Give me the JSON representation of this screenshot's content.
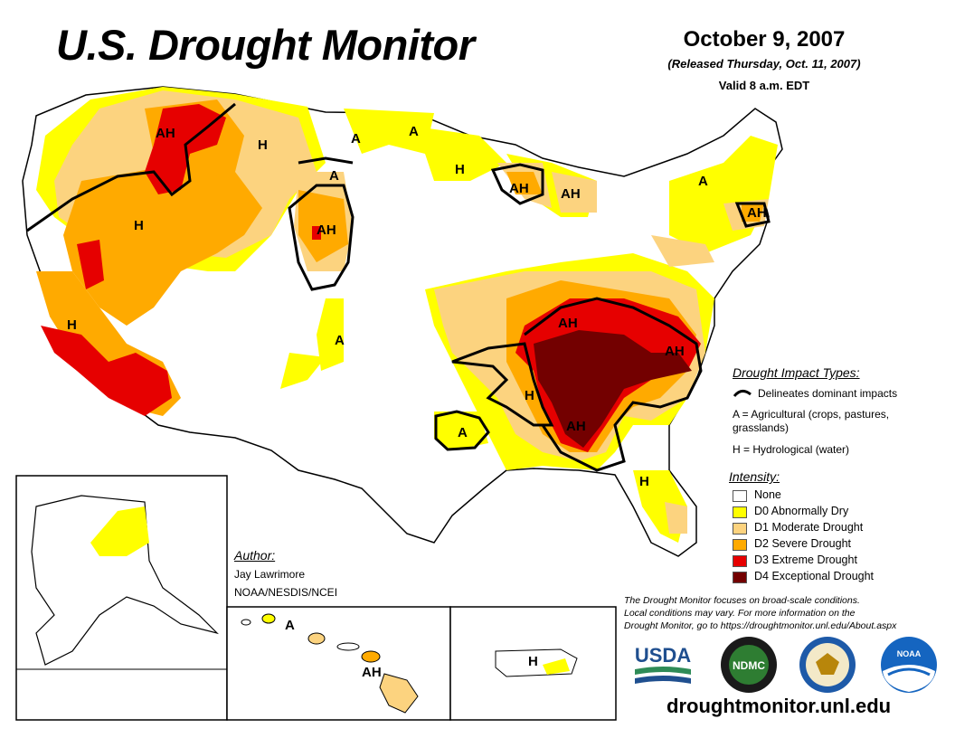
{
  "header": {
    "title": "U.S. Drought Monitor",
    "date": "October 9, 2007",
    "released": "(Released Thursday, Oct. 11, 2007)",
    "valid": "Valid 8 a.m. EDT"
  },
  "impact_legend": {
    "heading": "Drought Impact Types:",
    "delineates": "Delineates dominant impacts",
    "ag_line1": "A = Agricultural (crops, pastures,",
    "ag_line2": "grasslands)",
    "hydro": "H = Hydrological (water)"
  },
  "intensity_legend": {
    "heading": "Intensity:",
    "items": [
      {
        "label": "None",
        "color": "#ffffff"
      },
      {
        "label": "D0 Abnormally Dry",
        "color": "#ffff00"
      },
      {
        "label": "D1 Moderate Drought",
        "color": "#fcd37f"
      },
      {
        "label": "D2 Severe Drought",
        "color": "#ffaa00"
      },
      {
        "label": "D3 Extreme Drought",
        "color": "#e60000"
      },
      {
        "label": "D4 Exceptional Drought",
        "color": "#730000"
      }
    ]
  },
  "author": {
    "heading": "Author:",
    "name": "Jay Lawrimore",
    "org": "NOAA/NESDIS/NCEI"
  },
  "note": {
    "line1": "The Drought Monitor focuses on broad-scale conditions.",
    "line2": "Local conditions may vary. For more information on the",
    "line3": "Drought Monitor, go to https://droughtmonitor.unl.edu/About.aspx"
  },
  "url": "droughtmonitor.unl.edu",
  "logos": {
    "usda": "USDA",
    "ndmc": "NDMC",
    "noaa": "NOAA"
  },
  "map_labels": {
    "ah_mt": "AH",
    "h_mt": "H",
    "a_nd": "A",
    "a_mn": "A",
    "a_sd": "A",
    "ah_sd": "AH",
    "h_pnw": "H",
    "h_ca": "H",
    "a_ks": "A",
    "h_wi": "H",
    "ah_wi": "AH",
    "ah_mi": "AH",
    "a_ny": "A",
    "ah_ne": "AH",
    "ah_tn": "AH",
    "ah_nc": "AH",
    "h_ms": "H",
    "ah_al": "AH",
    "a_tx": "A",
    "h_fl": "H",
    "a_hi": "A",
    "ah_hi": "AH",
    "h_pr": "H"
  }
}
